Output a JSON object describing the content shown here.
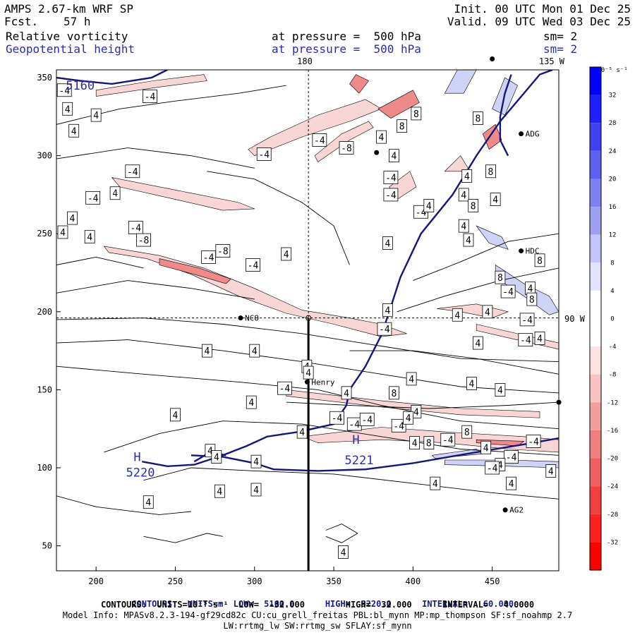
{
  "header": {
    "model": "AMPS 2.67-km WRF SP",
    "fcst_label": "Fcst.",
    "fcst_value": "57 h",
    "init": "Init. 00 UTC Mon 01 Dec 25",
    "valid": "Valid. 09 UTC Wed 03 Dec 25",
    "field1": "Relative vorticity",
    "field2": "Geopotential height",
    "pressure1": "at pressure =  500 hPa",
    "pressure2": "at pressure =  500 hPa",
    "sm1": "sm= 2",
    "sm2": "sm= 2"
  },
  "map_labels": {
    "lon_top": "180",
    "lon_right_top": "135 W",
    "lat_right": "90 W"
  },
  "stations": [
    {
      "name": "ADG",
      "x": 470,
      "y": 314
    },
    {
      "name": "NCO",
      "x": 293,
      "y": 196
    },
    {
      "name": "Henry",
      "x": 335,
      "y": 155
    },
    {
      "name": "HDC",
      "x": 470,
      "y": 239
    },
    {
      "name": "AG2",
      "x": 460,
      "y": 73
    }
  ],
  "colorbar": {
    "unit_label": "10⁻⁵ s⁻¹",
    "ticks": [
      "32",
      "28",
      "24",
      "20",
      "16",
      "12",
      "8",
      "4",
      "0",
      "-4",
      "-8",
      "-12",
      "-16",
      "-20",
      "-24",
      "-28",
      "-32"
    ],
    "colors": [
      "#0000ff",
      "#2020ff",
      "#4040f0",
      "#6060f0",
      "#8080f0",
      "#a0a0f0",
      "#c4c4f6",
      "#e2e2fb",
      "#ffffff",
      "#ffffff",
      "#fbe2e2",
      "#f6c4c4",
      "#f0a0a0",
      "#f08080",
      "#f06060",
      "#f04040",
      "#ff2020",
      "#ff0000"
    ]
  },
  "chart_data": {
    "type": "contour",
    "xlim": [
      175,
      492
    ],
    "ylim": [
      34,
      355
    ],
    "xticks": [
      200,
      250,
      300,
      350,
      400,
      450
    ],
    "yticks": [
      50,
      100,
      150,
      200,
      250,
      300,
      350
    ],
    "height_labels": [
      {
        "text": "5160",
        "x": 190,
        "y": 345
      },
      {
        "text": "5220",
        "x": 228,
        "y": 97
      },
      {
        "text": "5221",
        "x": 366,
        "y": 105
      }
    ],
    "highs": [
      {
        "text": "H",
        "x": 226,
        "y": 107
      },
      {
        "text": "H",
        "x": 364,
        "y": 118
      }
    ],
    "vort_labels": [
      {
        "t": "-4",
        "x": 180,
        "y": 342
      },
      {
        "t": "-4",
        "x": 234,
        "y": 338
      },
      {
        "t": "4",
        "x": 182,
        "y": 330
      },
      {
        "t": "4",
        "x": 200,
        "y": 326
      },
      {
        "t": "4",
        "x": 186,
        "y": 316
      },
      {
        "t": "-4",
        "x": 306,
        "y": 301
      },
      {
        "t": "-4",
        "x": 341,
        "y": 310
      },
      {
        "t": "-8",
        "x": 358,
        "y": 305
      },
      {
        "t": "-4",
        "x": 223,
        "y": 290
      },
      {
        "t": "-4",
        "x": 198,
        "y": 273
      },
      {
        "t": "4",
        "x": 212,
        "y": 276
      },
      {
        "t": "4",
        "x": 185,
        "y": 260
      },
      {
        "t": "-4",
        "x": 225,
        "y": 254
      },
      {
        "t": "-8",
        "x": 230,
        "y": 246
      },
      {
        "t": "-8",
        "x": 280,
        "y": 239
      },
      {
        "t": "-4",
        "x": 271,
        "y": 235
      },
      {
        "t": "4",
        "x": 179,
        "y": 251
      },
      {
        "t": "4",
        "x": 196,
        "y": 248
      },
      {
        "t": "-4",
        "x": 299,
        "y": 230
      },
      {
        "t": "4",
        "x": 320,
        "y": 237
      },
      {
        "t": "4",
        "x": 384,
        "y": 244
      },
      {
        "t": "-4",
        "x": 386,
        "y": 286
      },
      {
        "t": "-4",
        "x": 386,
        "y": 275
      },
      {
        "t": "-4",
        "x": 405,
        "y": 264
      },
      {
        "t": "4",
        "x": 388,
        "y": 300
      },
      {
        "t": "8",
        "x": 393,
        "y": 319
      },
      {
        "t": "8",
        "x": 402,
        "y": 327
      },
      {
        "t": "8",
        "x": 441,
        "y": 324
      },
      {
        "t": "4",
        "x": 380,
        "y": 312
      },
      {
        "t": "8",
        "x": 449,
        "y": 290
      },
      {
        "t": "4",
        "x": 434,
        "y": 287
      },
      {
        "t": "4",
        "x": 432,
        "y": 275
      },
      {
        "t": "8",
        "x": 438,
        "y": 268
      },
      {
        "t": "4",
        "x": 432,
        "y": 255
      },
      {
        "t": "4",
        "x": 410,
        "y": 268
      },
      {
        "t": "4",
        "x": 452,
        "y": 272
      },
      {
        "t": "4",
        "x": 435,
        "y": 246
      },
      {
        "t": "8",
        "x": 480,
        "y": 233
      },
      {
        "t": "8",
        "x": 455,
        "y": 222
      },
      {
        "t": "4",
        "x": 474,
        "y": 215
      },
      {
        "t": "-4",
        "x": 460,
        "y": 213
      },
      {
        "t": "8",
        "x": 475,
        "y": 208
      },
      {
        "t": "4",
        "x": 447,
        "y": 200
      },
      {
        "t": "4",
        "x": 384,
        "y": 201
      },
      {
        "t": "-4",
        "x": 472,
        "y": 195
      },
      {
        "t": "-4",
        "x": 382,
        "y": 189
      },
      {
        "t": "4",
        "x": 428,
        "y": 198
      },
      {
        "t": "4",
        "x": 441,
        "y": 180
      },
      {
        "t": "-4",
        "x": 471,
        "y": 182
      },
      {
        "t": "4",
        "x": 480,
        "y": 183
      },
      {
        "t": "4",
        "x": 300,
        "y": 175
      },
      {
        "t": "4",
        "x": 333,
        "y": 165
      },
      {
        "t": "4",
        "x": 270,
        "y": 175
      },
      {
        "t": "4",
        "x": 399,
        "y": 157
      },
      {
        "t": "8",
        "x": 388,
        "y": 148
      },
      {
        "t": "4",
        "x": 437,
        "y": 154
      },
      {
        "t": "4",
        "x": 402,
        "y": 136
      },
      {
        "t": "4",
        "x": 455,
        "y": 150
      },
      {
        "t": "-4",
        "x": 319,
        "y": 151
      },
      {
        "t": "4",
        "x": 358,
        "y": 148
      },
      {
        "t": "4",
        "x": 298,
        "y": 142
      },
      {
        "t": "-4",
        "x": 352,
        "y": 132
      },
      {
        "t": "-4",
        "x": 363,
        "y": 128
      },
      {
        "t": "-4",
        "x": 371,
        "y": 131
      },
      {
        "t": "-4",
        "x": 391,
        "y": 127
      },
      {
        "t": "4",
        "x": 397,
        "y": 132
      },
      {
        "t": "4",
        "x": 250,
        "y": 134
      },
      {
        "t": "4",
        "x": 330,
        "y": 123
      },
      {
        "t": "8",
        "x": 434,
        "y": 123
      },
      {
        "t": "4",
        "x": 401,
        "y": 116
      },
      {
        "t": "8",
        "x": 410,
        "y": 116
      },
      {
        "t": "-4",
        "x": 422,
        "y": 118
      },
      {
        "t": "4",
        "x": 446,
        "y": 113
      },
      {
        "t": "-4",
        "x": 462,
        "y": 107
      },
      {
        "t": "-4",
        "x": 476,
        "y": 117
      },
      {
        "t": "4",
        "x": 455,
        "y": 102
      },
      {
        "t": "4",
        "x": 487,
        "y": 98
      },
      {
        "t": "4",
        "x": 272,
        "y": 111
      },
      {
        "t": "4",
        "x": 276,
        "y": 107
      },
      {
        "t": "4",
        "x": 301,
        "y": 104
      },
      {
        "t": "-4",
        "x": 450,
        "y": 100
      },
      {
        "t": "4",
        "x": 462,
        "y": 90
      },
      {
        "t": "4",
        "x": 414,
        "y": 90
      },
      {
        "t": "4",
        "x": 278,
        "y": 85
      },
      {
        "t": "4",
        "x": 301,
        "y": 86
      },
      {
        "t": "4",
        "x": 233,
        "y": 78
      },
      {
        "t": "4",
        "x": 334,
        "y": 161
      },
      {
        "t": "4",
        "x": 356,
        "y": 46
      }
    ]
  },
  "footer": {
    "line1_a": "CONTOURS:  UNITS=m  LOW=  5160.0",
    "line1_b": "HIGH=  5220.0",
    "line1_c": "INTERVAL=   60.000",
    "line2": "CONTOURS:  UNITS=10⁻⁵ s⁻¹  LOW=  -32.000        HIGH=  32.000      INTERVAL=   4.0000",
    "line3": "Model Info: MPASv8.2.3-194-gf29cd82c CU:cu_grell_freitas PBL:bl_mynn MP:mp_thompson SF:sf_noahmp 2.7",
    "line4": "LW:rrtmg_lw SW:rrtmg_sw SFLAY:sf_mynn"
  }
}
